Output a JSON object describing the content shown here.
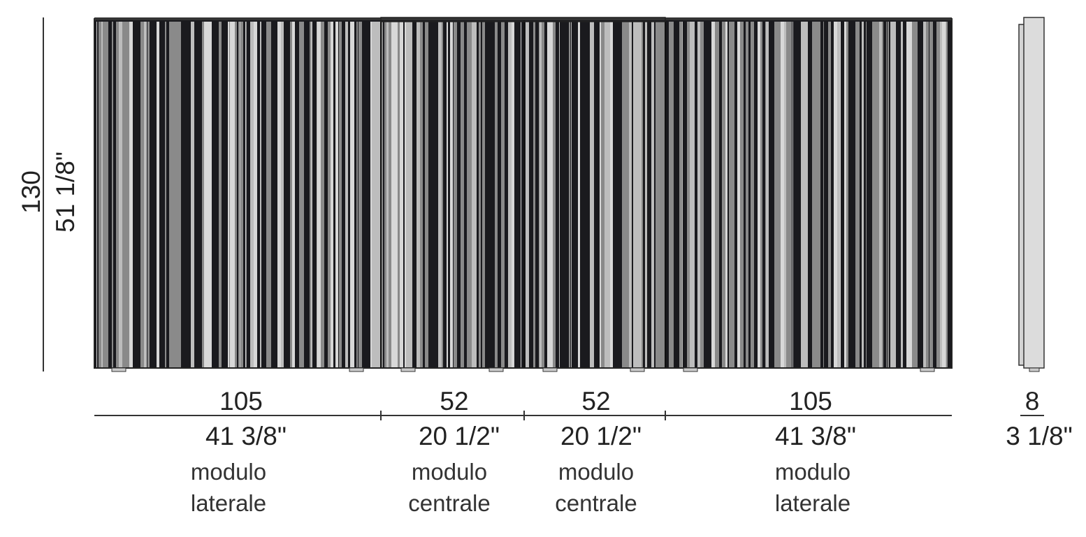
{
  "height": {
    "cm": "130",
    "in": "51 1/8\""
  },
  "modules": [
    {
      "cm": "105",
      "in": "41 3/8\"",
      "name_line1": "modulo",
      "name_line2": "laterale"
    },
    {
      "cm": "52",
      "in": "20 1/2\"",
      "name_line1": "modulo",
      "name_line2": "centrale"
    },
    {
      "cm": "52",
      "in": "20 1/2\"",
      "name_line1": "modulo",
      "name_line2": "centrale"
    },
    {
      "cm": "105",
      "in": "41 3/8\"",
      "name_line1": "modulo",
      "name_line2": "laterale"
    }
  ],
  "depth": {
    "cm": "8",
    "in": "3 1/8\""
  },
  "colors": {
    "stripe_dark": "#1a1a1e",
    "stripe_mid": "#8a8a8a",
    "stripe_light": "#d8d8d8",
    "side_fill": "#dcdcdc"
  }
}
